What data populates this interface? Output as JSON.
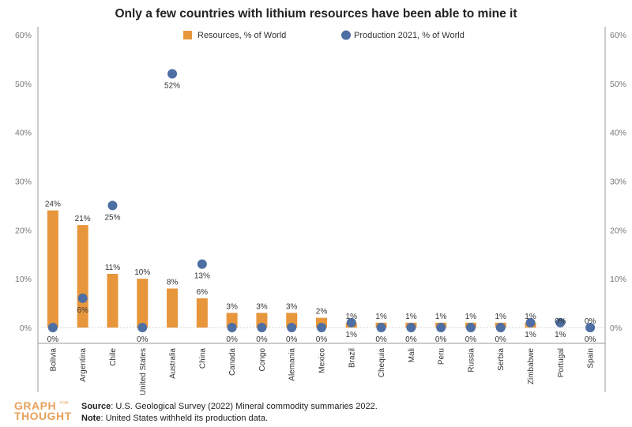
{
  "title": "Only a few countries with lithium resources have been able to mine it",
  "legend": {
    "resources": "Resources, % of World",
    "production": "Production 2021, % of World"
  },
  "colors": {
    "resources": "#e8963c",
    "production": "#4e6fa3",
    "axis": "#999999",
    "grid": "#e6e6e6"
  },
  "chart_data": {
    "type": "bar",
    "categories": [
      "Bolivia",
      "Argentina",
      "Chile",
      "United States",
      "Australia",
      "China",
      "Canada",
      "Congo",
      "Alemania",
      "Mexico",
      "Brazil",
      "Chequia",
      "Mali",
      "Peru",
      "Russia",
      "Serbia",
      "Zimbabwe",
      "Portugal",
      "Spain"
    ],
    "series": [
      {
        "name": "Resources, % of World",
        "type": "bar",
        "values": [
          24,
          21,
          11,
          10,
          8,
          6,
          3,
          3,
          3,
          2,
          1,
          1,
          1,
          1,
          1,
          1,
          1,
          0,
          0
        ],
        "labels": [
          "24%",
          "21%",
          "11%",
          "10%",
          "8%",
          "6%",
          "3%",
          "3%",
          "3%",
          "2%",
          "1%",
          "1%",
          "1%",
          "1%",
          "1%",
          "1%",
          "1%",
          "0%",
          "0%"
        ]
      },
      {
        "name": "Production 2021, % of World",
        "type": "scatter",
        "values": [
          0,
          6,
          25,
          0,
          52,
          13,
          0,
          0,
          0,
          0,
          1,
          0,
          0,
          0,
          0,
          0,
          1,
          1,
          0
        ],
        "labels": [
          "0%",
          "6%",
          "25%",
          "0%",
          "52%",
          "13%",
          "0%",
          "0%",
          "0%",
          "0%",
          "1%",
          "0%",
          "0%",
          "0%",
          "0%",
          "0%",
          "1%",
          "1%",
          "0%"
        ]
      }
    ],
    "y_ticks": [
      "0%",
      "10%",
      "20%",
      "30%",
      "40%",
      "50%",
      "60%"
    ],
    "ylim": [
      0,
      60
    ],
    "y_axis": "dual (left and right, same scale)",
    "grid": false,
    "legend_position": "top"
  },
  "footer": {
    "logo_top": "GRAPH",
    "logo_bottom": "THOUGHT",
    "logo_small": "FOR",
    "source_label": "Source",
    "source_text": ": U.S. Geological Survey (2022) Mineral commodity summaries 2022.",
    "note_label": "Note",
    "note_text": ": United States withheld its production data."
  }
}
